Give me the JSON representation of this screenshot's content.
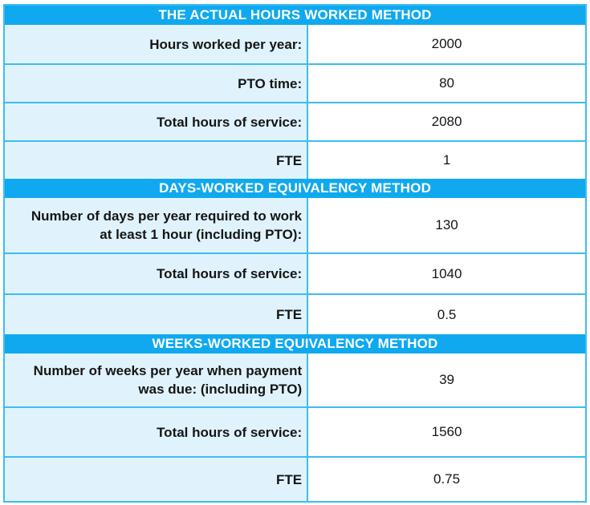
{
  "colors": {
    "header_bg": "#10a9ef",
    "header_text": "#ffffff",
    "label_bg": "#e0f3fc",
    "value_bg": "#ffffff",
    "border": "#3cbdf2",
    "text": "#151515"
  },
  "chart_data": {
    "type": "table",
    "columns": [
      "label",
      "value"
    ],
    "sections": [
      {
        "title": "THE ACTUAL HOURS WORKED METHOD",
        "rows": [
          {
            "label": "Hours worked per year:",
            "value": "2000"
          },
          {
            "label": "PTO time:",
            "value": "80"
          },
          {
            "label": "Total hours of service:",
            "value": "2080"
          },
          {
            "label": "FTE",
            "value": "1"
          }
        ]
      },
      {
        "title": "DAYS-WORKED EQUIVALENCY METHOD",
        "rows": [
          {
            "label": "Number of days per year required to work at least 1 hour (including PTO):",
            "value": "130"
          },
          {
            "label": "Total hours of service:",
            "value": "1040"
          },
          {
            "label": "FTE",
            "value": "0.5"
          }
        ]
      },
      {
        "title": "WEEKS-WORKED EQUIVALENCY METHOD",
        "rows": [
          {
            "label": "Number of weeks per year when payment was due: (including PTO)",
            "value": "39"
          },
          {
            "label": "Total hours of service:",
            "value": "1560"
          },
          {
            "label": "FTE",
            "value": "0.75"
          }
        ]
      }
    ]
  }
}
